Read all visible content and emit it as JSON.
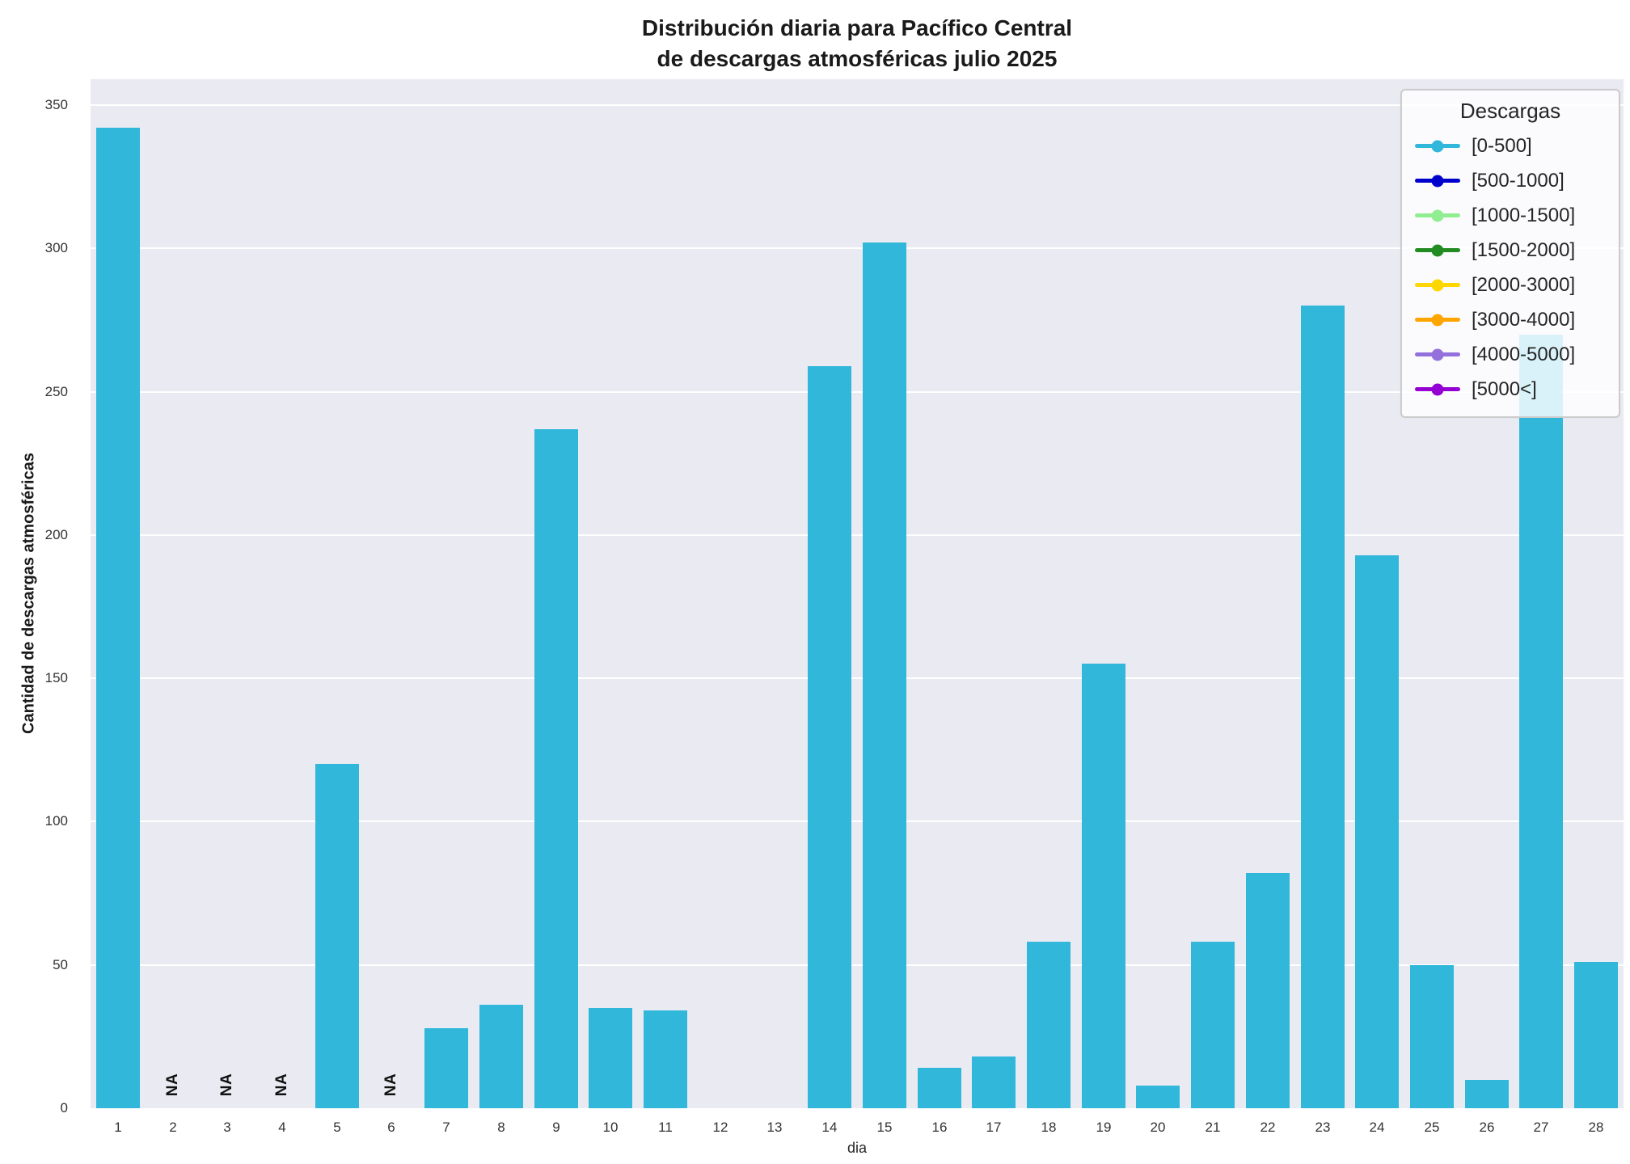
{
  "chart_data": {
    "type": "bar",
    "title": "Distribución diaria para Pacífico Central\nde descargas atmosféricas julio 2025",
    "title_lines": [
      "Distribución diaria para Pacífico Central",
      "de descargas atmosféricas julio 2025"
    ],
    "xlabel": "dia",
    "ylabel": "Cantidad de descargas atmosféricas",
    "categories": [
      1,
      2,
      3,
      4,
      5,
      6,
      7,
      8,
      9,
      10,
      11,
      12,
      13,
      14,
      15,
      16,
      17,
      18,
      19,
      20,
      21,
      22,
      23,
      24,
      25,
      26,
      27,
      28
    ],
    "values": [
      342,
      null,
      null,
      null,
      120,
      null,
      28,
      36,
      237,
      35,
      34,
      0,
      0,
      259,
      302,
      14,
      18,
      58,
      155,
      8,
      58,
      82,
      280,
      193,
      50,
      10,
      270,
      51
    ],
    "na_label": "NA",
    "na_days": [
      2,
      3,
      4,
      6
    ],
    "yticks": [
      0,
      50,
      100,
      150,
      200,
      250,
      300,
      350
    ],
    "ylim": [
      0,
      359
    ],
    "bar_color": "#30b7da",
    "plot_bg": "#eaeaf2",
    "grid_color": "#ffffff",
    "grid": true,
    "legend": {
      "title": "Descargas",
      "position": "upper right",
      "entries": [
        {
          "label": "[0-500]",
          "color": "#30b7da"
        },
        {
          "label": "[500-1000]",
          "color": "#0000cd"
        },
        {
          "label": "[1000-1500]",
          "color": "#90ee90"
        },
        {
          "label": "[1500-2000]",
          "color": "#228b22"
        },
        {
          "label": "[2000-3000]",
          "color": "#ffd700"
        },
        {
          "label": "[3000-4000]",
          "color": "#ffa500"
        },
        {
          "label": "[4000-5000]",
          "color": "#9370db"
        },
        {
          "label": "[5000<]",
          "color": "#9400d3"
        }
      ]
    }
  }
}
